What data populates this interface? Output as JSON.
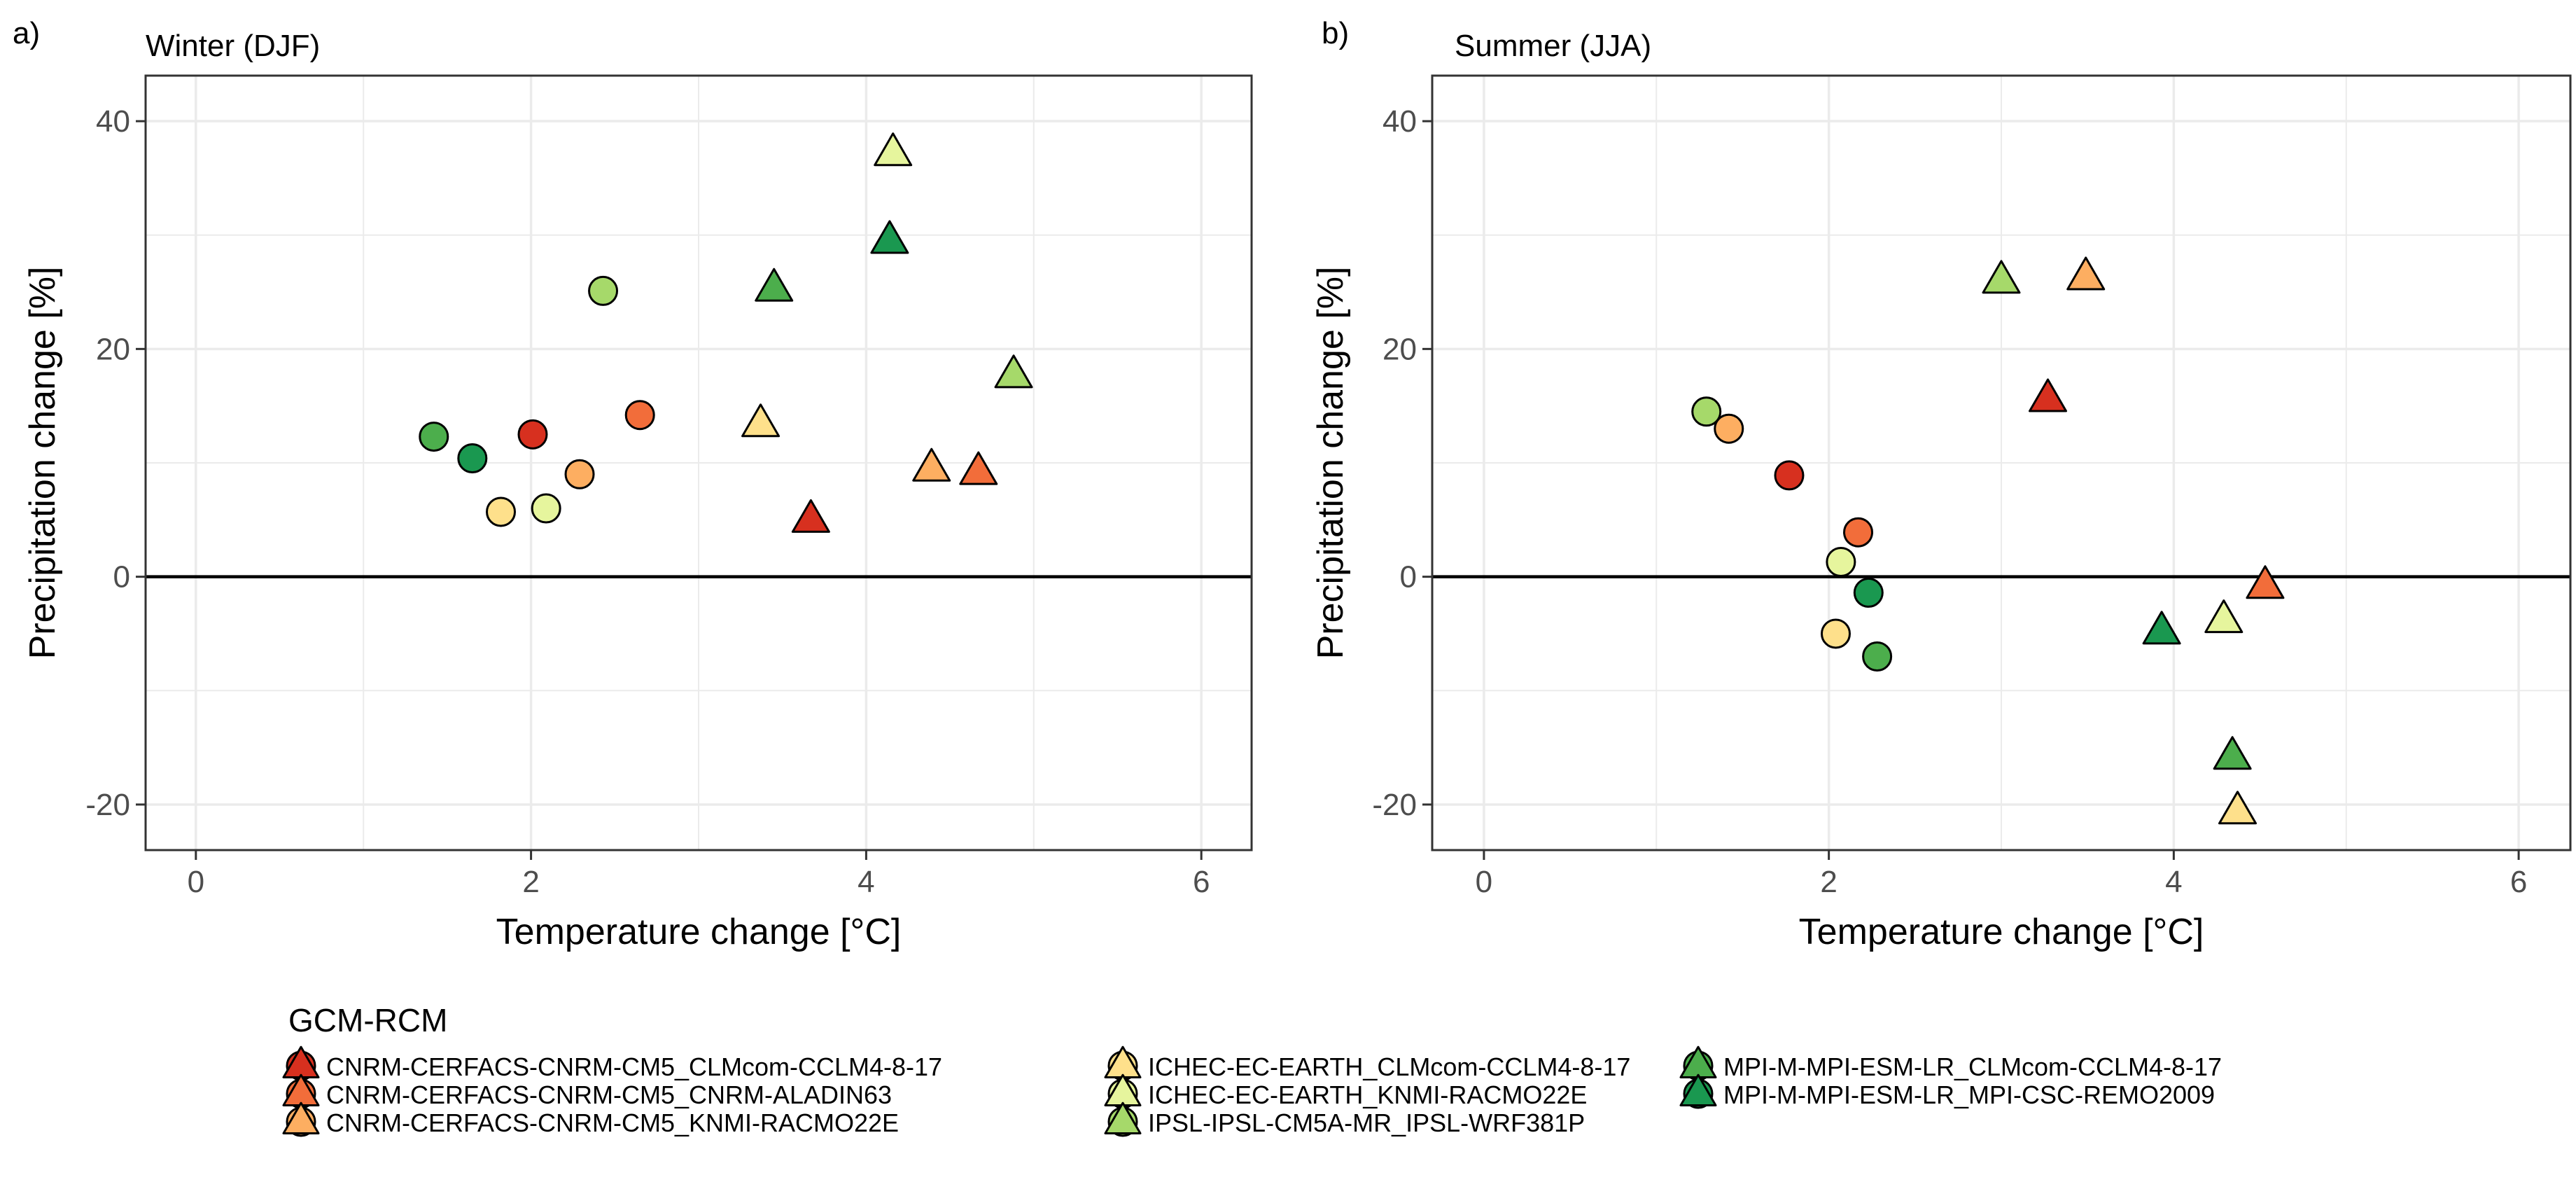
{
  "colors": {
    "CNRM-CERFACS-CNRM-CM5_CLMcom-CCLM4-8-17": "#d7301f",
    "CNRM-CERFACS-CNRM-CM5_CNRM-ALADIN63": "#f26d3a",
    "CNRM-CERFACS-CNRM-CM5_KNMI-RACMO22E": "#fdae61",
    "ICHEC-EC-EARTH_CLMcom-CCLM4-8-17": "#fee08b",
    "ICHEC-EC-EARTH_KNMI-RACMO22E": "#e6f59d",
    "IPSL-IPSL-CM5A-MR_IPSL-WRF381P": "#a6d96a",
    "MPI-M-MPI-ESM-LR_CLMcom-CCLM4-8-17": "#4cae4c",
    "MPI-M-MPI-ESM-LR_MPI-CSC-REMO2009": "#1a9850",
    "zero_line": "#000000",
    "grid": "#ebebeb",
    "panel_border": "#333333"
  },
  "legend": {
    "title": "GCM-RCM",
    "entries": [
      "CNRM-CERFACS-CNRM-CM5_CLMcom-CCLM4-8-17",
      "CNRM-CERFACS-CNRM-CM5_CNRM-ALADIN63",
      "CNRM-CERFACS-CNRM-CM5_KNMI-RACMO22E",
      "ICHEC-EC-EARTH_CLMcom-CCLM4-8-17",
      "ICHEC-EC-EARTH_KNMI-RACMO22E",
      "IPSL-IPSL-CM5A-MR_IPSL-WRF381P",
      "MPI-M-MPI-ESM-LR_CLMcom-CCLM4-8-17",
      "MPI-M-MPI-ESM-LR_MPI-CSC-REMO2009"
    ]
  },
  "chart_data": [
    {
      "type": "scatter",
      "panel_label": "a)",
      "title": "Winter (DJF)",
      "xlabel": "Temperature change [°C]",
      "ylabel": "Precipitation change [%]",
      "xlim": [
        -0.3,
        6.3
      ],
      "ylim": [
        -24,
        44
      ],
      "xticks": [
        0,
        2,
        4,
        6
      ],
      "yticks": [
        -20,
        0,
        20,
        40
      ],
      "hline": 0,
      "series": [
        {
          "name": "CNRM-CERFACS-CNRM-CM5_CLMcom-CCLM4-8-17",
          "points": [
            {
              "x": 2.01,
              "y": 12.5,
              "shape": "circle"
            },
            {
              "x": 3.67,
              "y": 5.0,
              "shape": "triangle"
            }
          ]
        },
        {
          "name": "CNRM-CERFACS-CNRM-CM5_CNRM-ALADIN63",
          "points": [
            {
              "x": 2.65,
              "y": 14.2,
              "shape": "circle"
            },
            {
              "x": 4.67,
              "y": 9.2,
              "shape": "triangle"
            }
          ]
        },
        {
          "name": "CNRM-CERFACS-CNRM-CM5_KNMI-RACMO22E",
          "points": [
            {
              "x": 2.29,
              "y": 9.0,
              "shape": "circle"
            },
            {
              "x": 4.39,
              "y": 9.5,
              "shape": "triangle"
            }
          ]
        },
        {
          "name": "ICHEC-EC-EARTH_CLMcom-CCLM4-8-17",
          "points": [
            {
              "x": 1.82,
              "y": 5.7,
              "shape": "circle"
            },
            {
              "x": 3.37,
              "y": 13.4,
              "shape": "triangle"
            }
          ]
        },
        {
          "name": "ICHEC-EC-EARTH_KNMI-RACMO22E",
          "points": [
            {
              "x": 2.09,
              "y": 6.0,
              "shape": "circle"
            },
            {
              "x": 4.16,
              "y": 37.2,
              "shape": "triangle"
            }
          ]
        },
        {
          "name": "IPSL-IPSL-CM5A-MR_IPSL-WRF381P",
          "points": [
            {
              "x": 2.43,
              "y": 25.1,
              "shape": "circle"
            },
            {
              "x": 4.88,
              "y": 17.7,
              "shape": "triangle"
            }
          ]
        },
        {
          "name": "MPI-M-MPI-ESM-LR_CLMcom-CCLM4-8-17",
          "points": [
            {
              "x": 1.42,
              "y": 12.3,
              "shape": "circle"
            },
            {
              "x": 3.45,
              "y": 25.3,
              "shape": "triangle"
            }
          ]
        },
        {
          "name": "MPI-M-MPI-ESM-LR_MPI-CSC-REMO2009",
          "points": [
            {
              "x": 1.65,
              "y": 10.4,
              "shape": "circle"
            },
            {
              "x": 4.14,
              "y": 29.5,
              "shape": "triangle"
            }
          ]
        }
      ]
    },
    {
      "type": "scatter",
      "panel_label": "b)",
      "title": "Summer (JJA)",
      "xlabel": "Temperature change [°C]",
      "ylabel": "Precipitation change [%]",
      "xlim": [
        -0.3,
        6.3
      ],
      "ylim": [
        -24,
        44
      ],
      "xticks": [
        0,
        2,
        4,
        6
      ],
      "yticks": [
        -20,
        0,
        20,
        40
      ],
      "hline": 0,
      "series": [
        {
          "name": "CNRM-CERFACS-CNRM-CM5_CLMcom-CCLM4-8-17",
          "points": [
            {
              "x": 1.77,
              "y": 8.9,
              "shape": "circle"
            },
            {
              "x": 3.27,
              "y": 15.6,
              "shape": "triangle"
            }
          ]
        },
        {
          "name": "CNRM-CERFACS-CNRM-CM5_CNRM-ALADIN63",
          "points": [
            {
              "x": 2.17,
              "y": 3.9,
              "shape": "circle"
            },
            {
              "x": 4.53,
              "y": -0.8,
              "shape": "triangle"
            }
          ]
        },
        {
          "name": "CNRM-CERFACS-CNRM-CM5_KNMI-RACMO22E",
          "points": [
            {
              "x": 1.42,
              "y": 13.0,
              "shape": "circle"
            },
            {
              "x": 3.49,
              "y": 26.3,
              "shape": "triangle"
            }
          ]
        },
        {
          "name": "ICHEC-EC-EARTH_CLMcom-CCLM4-8-17",
          "points": [
            {
              "x": 2.04,
              "y": -5.0,
              "shape": "circle"
            },
            {
              "x": 4.37,
              "y": -20.6,
              "shape": "triangle"
            }
          ]
        },
        {
          "name": "ICHEC-EC-EARTH_KNMI-RACMO22E",
          "points": [
            {
              "x": 2.07,
              "y": 1.3,
              "shape": "circle"
            },
            {
              "x": 4.29,
              "y": -3.8,
              "shape": "triangle"
            }
          ]
        },
        {
          "name": "IPSL-IPSL-CM5A-MR_IPSL-WRF381P",
          "points": [
            {
              "x": 1.29,
              "y": 14.5,
              "shape": "circle"
            },
            {
              "x": 3.0,
              "y": 26.0,
              "shape": "triangle"
            }
          ]
        },
        {
          "name": "MPI-M-MPI-ESM-LR_CLMcom-CCLM4-8-17",
          "points": [
            {
              "x": 2.28,
              "y": -7.0,
              "shape": "circle"
            },
            {
              "x": 4.34,
              "y": -15.8,
              "shape": "triangle"
            }
          ]
        },
        {
          "name": "MPI-M-MPI-ESM-LR_MPI-CSC-REMO2009",
          "points": [
            {
              "x": 2.23,
              "y": -1.4,
              "shape": "circle"
            },
            {
              "x": 3.93,
              "y": -4.8,
              "shape": "triangle"
            }
          ]
        }
      ]
    }
  ]
}
